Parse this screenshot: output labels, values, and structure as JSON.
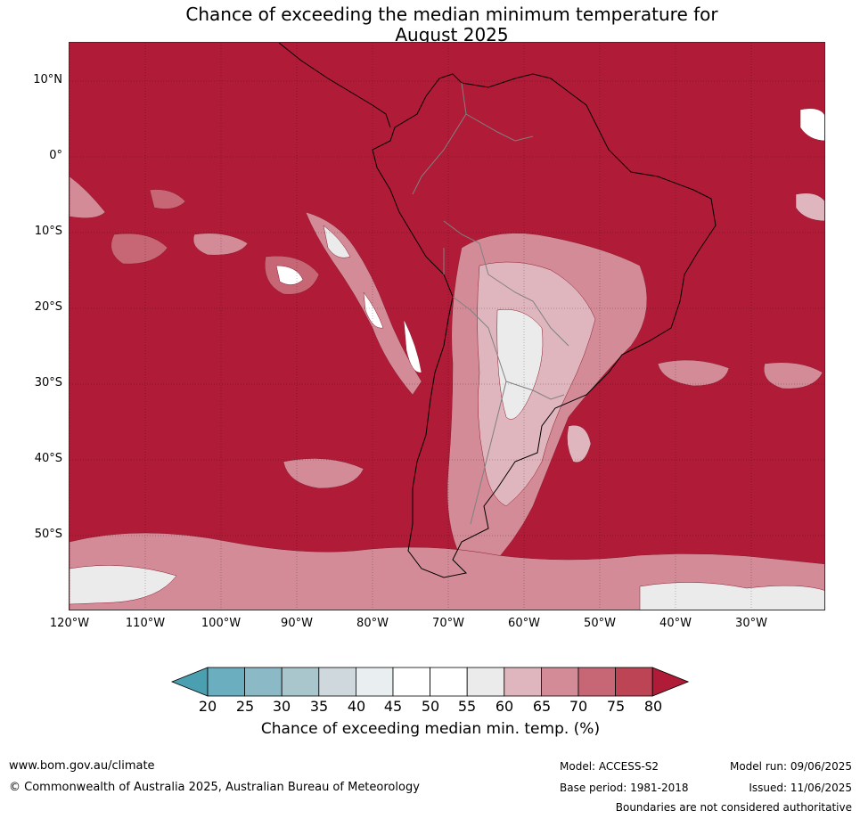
{
  "title": {
    "line1": "Chance of exceeding the median minimum temperature for",
    "line2": "August 2025"
  },
  "axes": {
    "lat_labels": [
      "10°N",
      "0°",
      "10°S",
      "20°S",
      "30°S",
      "40°S",
      "50°S"
    ],
    "lon_labels": [
      "120°W",
      "110°W",
      "100°W",
      "90°W",
      "80°W",
      "70°W",
      "60°W",
      "50°W",
      "40°W",
      "30°W"
    ],
    "lat_range": [
      -60,
      15
    ],
    "lon_range": [
      -120,
      -20
    ]
  },
  "legend": {
    "ticks": [
      "20",
      "25",
      "30",
      "35",
      "40",
      "45",
      "50",
      "55",
      "60",
      "65",
      "70",
      "75",
      "80"
    ],
    "colors": [
      "#4a9fb0",
      "#6aaebf",
      "#8bbac6",
      "#a9c6cd",
      "#cfd8dc",
      "#e9eff1",
      "#ffffff",
      "#ffffff",
      "#ebebeb",
      "#e0b6be",
      "#d38c97",
      "#c76674",
      "#bd4455",
      "#b01b38"
    ],
    "title": "Chance of exceeding median min. temp. (%)"
  },
  "footer": {
    "website": "www.bom.gov.au/climate",
    "copyright": "© Commonwealth of Australia 2025, Australian Bureau of Meteorology",
    "model": "Model: ACCESS-S2",
    "base_period": "Base period: 1981-2018",
    "model_run": "Model run: 09/06/2025",
    "issued": "Issued: 11/06/2025",
    "disclaimer": "Boundaries are not considered authoritative"
  },
  "map_colors": {
    "background": "#b01b38",
    "coast": "#000000",
    "borders": "#808080"
  }
}
